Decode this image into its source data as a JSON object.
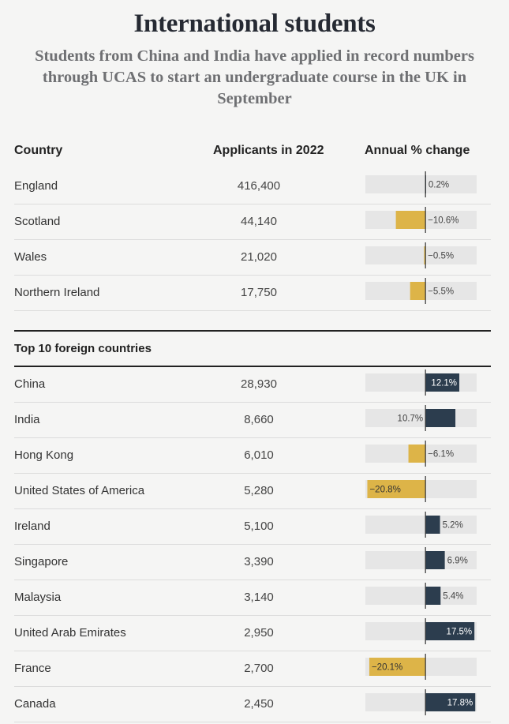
{
  "title": "International students",
  "subtitle": "Students from China and India have applied in record numbers through UCAS to start an undergraduate course in the UK in September",
  "headers": {
    "country": "Country",
    "applicants": "Applicants in 2022",
    "change": "Annual % change"
  },
  "section2_title": "Top 10 foreign countries",
  "colors": {
    "positive": "#2c3d4e",
    "negative": "#ddb448",
    "track": "#e6e6e6",
    "axis": "#333333"
  },
  "chart_data": {
    "type": "table",
    "change_axis_range": [
      -21.5,
      18.3
    ],
    "groups": [
      {
        "name": "",
        "rows": [
          {
            "country": "England",
            "applicants": "416,400",
            "change": 0.2,
            "change_label": "0.2%"
          },
          {
            "country": "Scotland",
            "applicants": "44,140",
            "change": -10.6,
            "change_label": "−10.6%"
          },
          {
            "country": "Wales",
            "applicants": "21,020",
            "change": -0.5,
            "change_label": "−0.5%"
          },
          {
            "country": "Northern Ireland",
            "applicants": "17,750",
            "change": -5.5,
            "change_label": "−5.5%"
          }
        ]
      },
      {
        "name": "Top 10 foreign countries",
        "rows": [
          {
            "country": "China",
            "applicants": "28,930",
            "change": 12.1,
            "change_label": "12.1%"
          },
          {
            "country": "India",
            "applicants": "8,660",
            "change": 10.7,
            "change_label": "10.7%"
          },
          {
            "country": "Hong Kong",
            "applicants": "6,010",
            "change": -6.1,
            "change_label": "−6.1%"
          },
          {
            "country": "United States of America",
            "applicants": "5,280",
            "change": -20.8,
            "change_label": "−20.8%"
          },
          {
            "country": "Ireland",
            "applicants": "5,100",
            "change": 5.2,
            "change_label": "5.2%"
          },
          {
            "country": "Singapore",
            "applicants": "3,390",
            "change": 6.9,
            "change_label": "6.9%"
          },
          {
            "country": "Malaysia",
            "applicants": "3,140",
            "change": 5.4,
            "change_label": "5.4%"
          },
          {
            "country": "United Arab Emirates",
            "applicants": "2,950",
            "change": 17.5,
            "change_label": "17.5%"
          },
          {
            "country": "France",
            "applicants": "2,700",
            "change": -20.1,
            "change_label": "−20.1%"
          },
          {
            "country": "Canada",
            "applicants": "2,450",
            "change": 17.8,
            "change_label": "17.8%"
          }
        ]
      }
    ]
  }
}
